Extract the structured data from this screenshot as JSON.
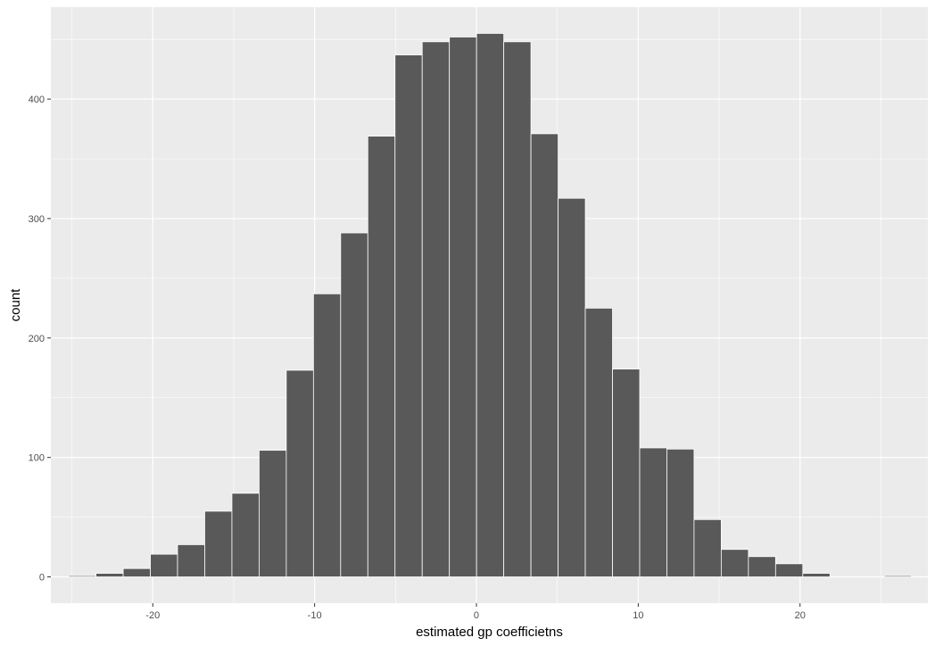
{
  "chart_data": {
    "type": "bar",
    "subtype": "histogram",
    "title": "",
    "xlabel": "estimated gp coefficietns",
    "ylabel": "count",
    "bin_width": 1.68,
    "bin_centers": [
      -24.35,
      -22.67,
      -20.99,
      -19.31,
      -17.63,
      -15.95,
      -14.27,
      -12.59,
      -10.91,
      -9.23,
      -7.55,
      -5.87,
      -4.19,
      -2.51,
      -0.83,
      0.85,
      2.53,
      4.21,
      5.89,
      7.57,
      9.25,
      10.93,
      12.61,
      14.29,
      15.97,
      17.65,
      19.33,
      21.01,
      22.69,
      24.37,
      26.05
    ],
    "values": [
      1,
      3,
      7,
      19,
      27,
      55,
      70,
      106,
      173,
      237,
      288,
      369,
      437,
      448,
      452,
      455,
      448,
      371,
      317,
      225,
      174,
      108,
      107,
      48,
      23,
      17,
      11,
      3,
      0,
      0,
      1
    ],
    "xlim": [
      -26.3,
      27.9
    ],
    "ylim": [
      -22,
      477
    ],
    "x_ticks": [
      -20,
      -10,
      0,
      10,
      20
    ],
    "x_tick_labels": [
      "-20",
      "-10",
      "0",
      "10",
      "20"
    ],
    "y_ticks": [
      0,
      100,
      200,
      300,
      400
    ],
    "y_tick_labels": [
      "0",
      "100",
      "200",
      "300",
      "400"
    ],
    "grid": true,
    "legend": "none",
    "colors": {
      "panel_background": "#ebebeb",
      "grid": "#ffffff",
      "bar_fill": "#595959",
      "bar_outline": "#ffffff",
      "tick_label": "#4d4d4d",
      "tick_mark": "#333333"
    }
  }
}
